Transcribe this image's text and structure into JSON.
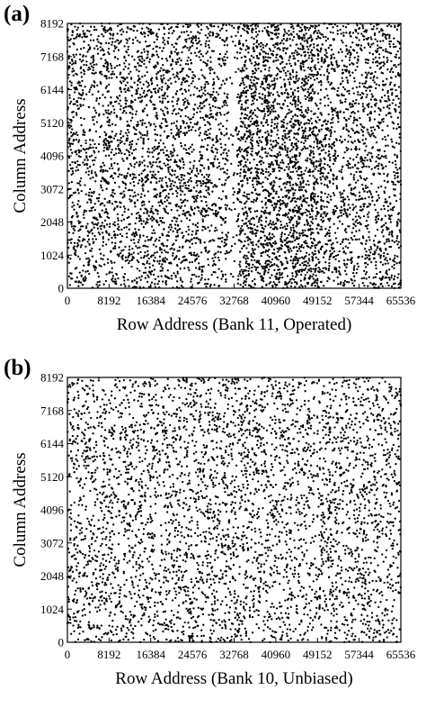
{
  "chart_data": [
    {
      "type": "scatter",
      "panel_label": "(a)",
      "title": "",
      "xlabel": "Row Address (Bank 11, Operated)",
      "ylabel": "Column Address",
      "xlim": [
        0,
        65536
      ],
      "ylim": [
        0,
        8192
      ],
      "xticks": [
        "0",
        "8192",
        "16384",
        "24576",
        "32768",
        "40960",
        "49152",
        "57344",
        "65536"
      ],
      "yticks": [
        "0",
        "1024",
        "2048",
        "3072",
        "4096",
        "5120",
        "6144",
        "7168",
        "8192"
      ],
      "point_color": "#000000",
      "approx_point_count": 9000,
      "density_note": "Uniform scatter of dense points; higher density band between row 32768 and ~50000, with a gap near row 32768"
    },
    {
      "type": "scatter",
      "panel_label": "(b)",
      "title": "",
      "xlabel": "Row Address (Bank 10, Unbiased)",
      "ylabel": "Column Address",
      "xlim": [
        0,
        65536
      ],
      "ylim": [
        0,
        8192
      ],
      "xticks": [
        "0",
        "8192",
        "16384",
        "24576",
        "32768",
        "40960",
        "49152",
        "57344",
        "65536"
      ],
      "yticks": [
        "0",
        "1024",
        "2048",
        "3072",
        "4096",
        "5120",
        "6144",
        "7168",
        "8192"
      ],
      "point_color": "#000000",
      "approx_point_count": 4200,
      "density_note": "Sparser, roughly uniform scatter across whole address space"
    }
  ]
}
